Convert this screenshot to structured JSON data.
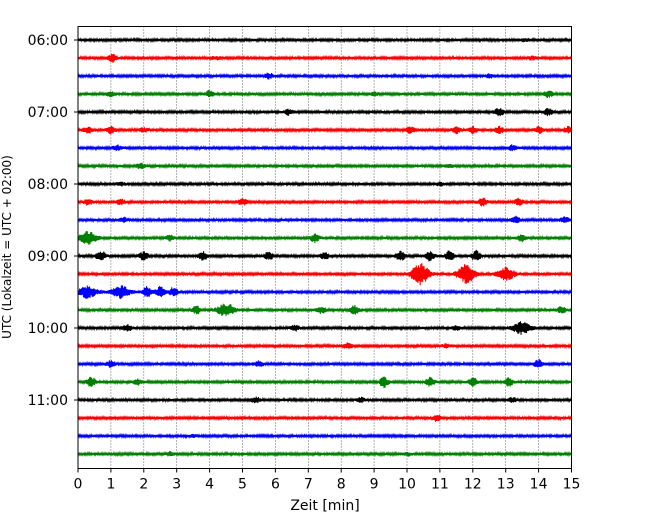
{
  "chart_data": {
    "type": "line",
    "title": "",
    "xlabel": "Zeit  [min]",
    "ylabel": "UTC (Lokalzeit = UTC + 02:00)",
    "xlim": [
      0,
      15
    ],
    "x_ticks": [
      "0",
      "1",
      "2",
      "3",
      "4",
      "5",
      "6",
      "7",
      "8",
      "9",
      "10",
      "11",
      "12",
      "13",
      "14",
      "15"
    ],
    "y_tick_labels": [
      "06:00",
      "07:00",
      "08:00",
      "09:00",
      "10:00",
      "11:00"
    ],
    "grid": "vertical dotted at each minute",
    "trace_interval_minutes": 15,
    "trace_colors": [
      "#000000",
      "#ff0000",
      "#0000ff",
      "#008000"
    ],
    "traces": [
      {
        "start": "06:00",
        "color": "#000000",
        "events": [
          [
            13.6,
            1.2
          ]
        ]
      },
      {
        "start": "06:15",
        "color": "#ff0000",
        "events": [
          [
            1.05,
            4
          ],
          [
            4.2,
            1.5
          ],
          [
            13.8,
            1.5
          ]
        ]
      },
      {
        "start": "06:30",
        "color": "#0000ff",
        "events": [
          [
            5.8,
            2.5
          ],
          [
            12.5,
            1.5
          ]
        ]
      },
      {
        "start": "06:45",
        "color": "#008000",
        "events": [
          [
            1.0,
            2
          ],
          [
            4.0,
            3
          ],
          [
            9.0,
            1.5
          ],
          [
            14.3,
            3
          ]
        ]
      },
      {
        "start": "07:00",
        "color": "#000000",
        "events": [
          [
            6.4,
            2.5
          ],
          [
            12.8,
            4
          ],
          [
            14.3,
            3.5
          ]
        ]
      },
      {
        "start": "07:15",
        "color": "#ff0000",
        "events": [
          [
            0.3,
            3
          ],
          [
            1.0,
            3
          ],
          [
            2.0,
            2
          ],
          [
            10.1,
            3
          ],
          [
            11.5,
            3
          ],
          [
            12.0,
            3
          ],
          [
            12.8,
            3
          ],
          [
            14.0,
            3
          ],
          [
            14.9,
            3
          ]
        ]
      },
      {
        "start": "07:30",
        "color": "#0000ff",
        "events": [
          [
            1.2,
            2.5
          ],
          [
            13.2,
            2.5
          ]
        ]
      },
      {
        "start": "07:45",
        "color": "#008000",
        "events": [
          [
            1.9,
            2.5
          ],
          [
            11.3,
            1.5
          ]
        ]
      },
      {
        "start": "08:00",
        "color": "#000000",
        "events": [
          [
            1.3,
            1.5
          ],
          [
            11.0,
            1.5
          ]
        ]
      },
      {
        "start": "08:15",
        "color": "#ff0000",
        "events": [
          [
            0.3,
            2.5
          ],
          [
            1.3,
            2.5
          ],
          [
            5.0,
            3
          ],
          [
            12.3,
            3.5
          ],
          [
            13.4,
            3
          ]
        ]
      },
      {
        "start": "08:30",
        "color": "#0000ff",
        "events": [
          [
            1.4,
            2
          ],
          [
            13.3,
            3
          ],
          [
            14.8,
            3
          ]
        ]
      },
      {
        "start": "08:45",
        "color": "#008000",
        "events": [
          [
            0.3,
            6
          ],
          [
            2.8,
            2.5
          ],
          [
            7.2,
            4
          ],
          [
            13.5,
            3
          ]
        ]
      },
      {
        "start": "09:00",
        "color": "#000000",
        "events": [
          [
            0.7,
            5
          ],
          [
            2.0,
            4
          ],
          [
            3.8,
            4
          ],
          [
            5.8,
            4
          ],
          [
            7.5,
            3
          ],
          [
            9.8,
            5
          ],
          [
            10.7,
            5
          ],
          [
            11.3,
            5
          ],
          [
            12.1,
            5
          ]
        ]
      },
      {
        "start": "09:15",
        "color": "#ff0000",
        "events": [
          [
            10.4,
            10
          ],
          [
            11.8,
            9
          ],
          [
            13.0,
            6
          ]
        ]
      },
      {
        "start": "09:30",
        "color": "#0000ff",
        "events": [
          [
            0.3,
            6
          ],
          [
            1.3,
            6
          ],
          [
            2.1,
            5
          ],
          [
            2.5,
            5
          ],
          [
            2.9,
            4
          ]
        ]
      },
      {
        "start": "09:45",
        "color": "#008000",
        "events": [
          [
            3.6,
            4
          ],
          [
            4.5,
            6
          ],
          [
            7.4,
            3
          ],
          [
            8.4,
            4
          ],
          [
            14.7,
            3
          ]
        ]
      },
      {
        "start": "10:00",
        "color": "#000000",
        "events": [
          [
            1.5,
            3
          ],
          [
            6.6,
            2.5
          ],
          [
            11.5,
            2
          ],
          [
            13.5,
            6
          ]
        ]
      },
      {
        "start": "10:15",
        "color": "#ff0000",
        "events": [
          [
            8.2,
            2.5
          ],
          [
            11.2,
            1.5
          ]
        ]
      },
      {
        "start": "10:30",
        "color": "#0000ff",
        "events": [
          [
            1.0,
            3
          ],
          [
            5.5,
            2.5
          ],
          [
            14.0,
            4
          ]
        ]
      },
      {
        "start": "10:45",
        "color": "#008000",
        "events": [
          [
            0.4,
            4.5
          ],
          [
            1.8,
            3
          ],
          [
            9.3,
            5
          ],
          [
            10.7,
            4
          ],
          [
            12.0,
            4
          ],
          [
            13.1,
            3.5
          ]
        ]
      },
      {
        "start": "11:00",
        "color": "#000000",
        "events": [
          [
            5.4,
            2.5
          ],
          [
            8.6,
            2
          ],
          [
            13.2,
            2
          ]
        ]
      },
      {
        "start": "11:15",
        "color": "#ff0000",
        "events": [
          [
            10.9,
            3
          ]
        ]
      },
      {
        "start": "11:30",
        "color": "#0000ff",
        "events": [
          [
            3.5,
            1
          ]
        ]
      },
      {
        "start": "11:45",
        "color": "#008000",
        "events": [
          [
            2.8,
            1.5
          ],
          [
            10.0,
            1.5
          ]
        ]
      }
    ]
  }
}
